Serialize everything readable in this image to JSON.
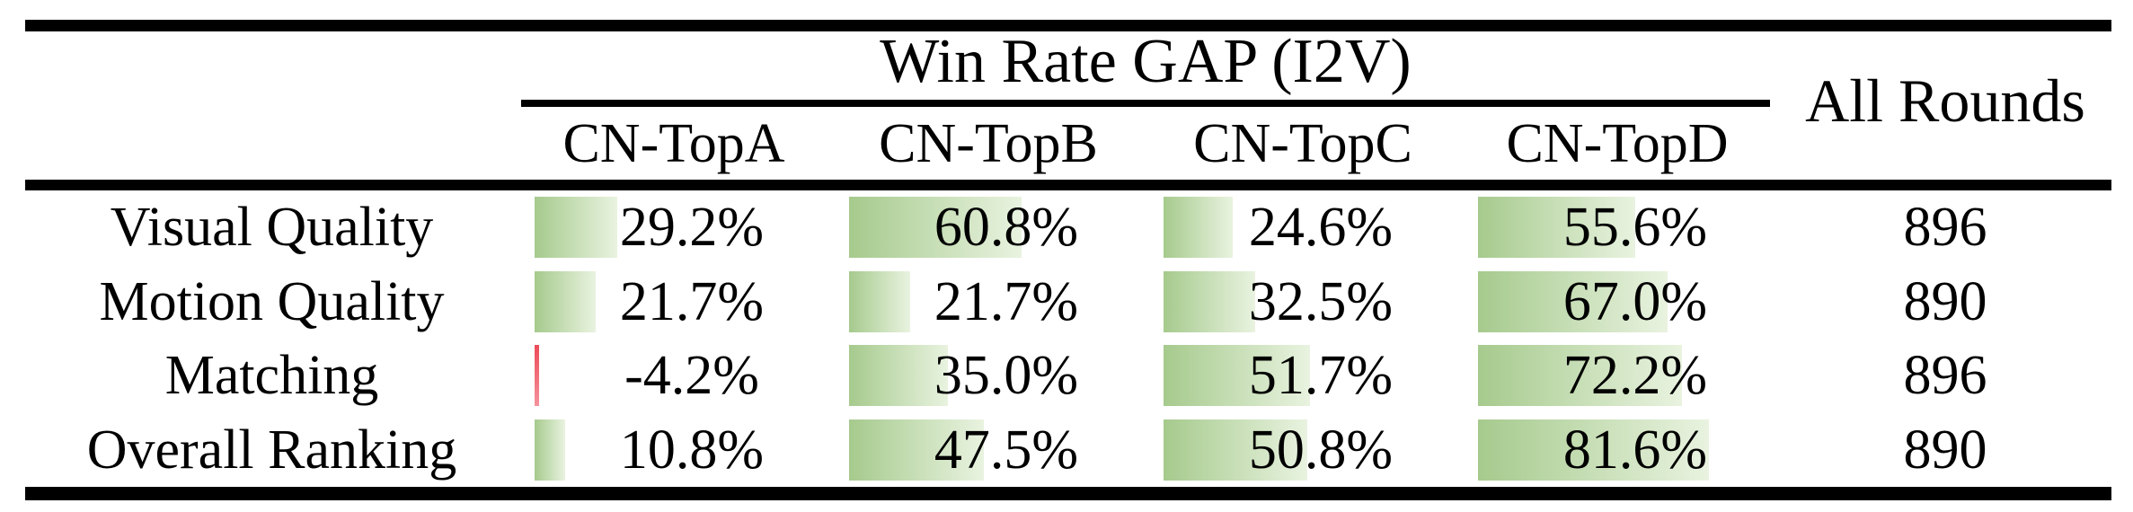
{
  "header": {
    "group_title": "Win Rate GAP (I2V)",
    "columns": [
      "CN-TopA",
      "CN-TopB",
      "CN-TopC",
      "CN-TopD"
    ],
    "all_rounds": "All Rounds"
  },
  "rows": [
    {
      "label": "Visual Quality",
      "cells": [
        {
          "value": 29.2,
          "text": "29.2%"
        },
        {
          "value": 60.8,
          "text": "60.8%"
        },
        {
          "value": 24.6,
          "text": "24.6%"
        },
        {
          "value": 55.6,
          "text": "55.6%"
        }
      ],
      "all_rounds": "896"
    },
    {
      "label": "Motion Quality",
      "cells": [
        {
          "value": 21.7,
          "text": "21.7%"
        },
        {
          "value": 21.7,
          "text": "21.7%"
        },
        {
          "value": 32.5,
          "text": "32.5%"
        },
        {
          "value": 67.0,
          "text": "67.0%"
        }
      ],
      "all_rounds": "890"
    },
    {
      "label": "Matching",
      "cells": [
        {
          "value": -4.2,
          "text": "-4.2%"
        },
        {
          "value": 35.0,
          "text": "35.0%"
        },
        {
          "value": 51.7,
          "text": "51.7%"
        },
        {
          "value": 72.2,
          "text": "72.2%"
        }
      ],
      "all_rounds": "896"
    },
    {
      "label": "Overall Ranking",
      "cells": [
        {
          "value": 10.8,
          "text": "10.8%"
        },
        {
          "value": 47.5,
          "text": "47.5%"
        },
        {
          "value": 50.8,
          "text": "50.8%"
        },
        {
          "value": 81.6,
          "text": "81.6%"
        }
      ],
      "all_rounds": "890"
    }
  ],
  "colors": {
    "bar_green_start": "#a6ca8d",
    "bar_green_end": "#e9f3e0",
    "bar_negative": "#ec4b58",
    "text": "#000000",
    "rule": "#000000"
  },
  "chart_data": {
    "type": "table",
    "title": "Win Rate GAP (I2V)",
    "columns": [
      "CN-TopA",
      "CN-TopB",
      "CN-TopC",
      "CN-TopD",
      "All Rounds"
    ],
    "row_labels": [
      "Visual Quality",
      "Motion Quality",
      "Matching",
      "Overall Ranking"
    ],
    "series": [
      {
        "name": "Visual Quality",
        "values": [
          29.2,
          60.8,
          24.6,
          55.6
        ],
        "all_rounds": 896
      },
      {
        "name": "Motion Quality",
        "values": [
          21.7,
          21.7,
          32.5,
          67.0
        ],
        "all_rounds": 890
      },
      {
        "name": "Matching",
        "values": [
          -4.2,
          35.0,
          51.7,
          72.2
        ],
        "all_rounds": 896
      },
      {
        "name": "Overall Ranking",
        "values": [
          10.8,
          47.5,
          50.8,
          81.6
        ],
        "all_rounds": 890
      }
    ],
    "value_unit": "%",
    "bar_style": "in-cell gradient data bars, green positive, red negative"
  }
}
